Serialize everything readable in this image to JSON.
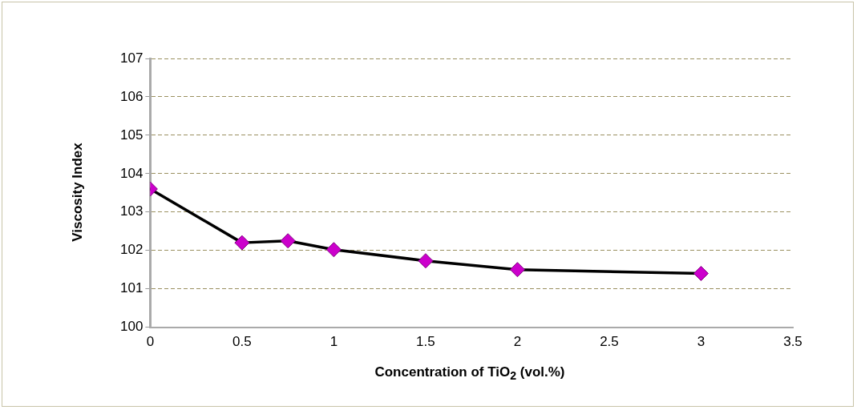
{
  "chart_data": {
    "type": "line",
    "xlabel": "Concentration of TiO$_{2}$ (vol.%)",
    "ylabel": "Viscosity Index",
    "x": [
      0,
      0.5,
      0.75,
      1,
      1.5,
      2,
      3
    ],
    "series": [
      {
        "color": "#cc00cc",
        "values": [
          103.6,
          102.2,
          102.25,
          102.02,
          101.73,
          101.5,
          101.4
        ]
      }
    ],
    "xlim": [
      0,
      3.5
    ],
    "xticks": [
      0,
      0.5,
      1,
      1.5,
      2,
      2.5,
      3,
      3.5
    ],
    "ylim": [
      100,
      107
    ],
    "yticks": [
      100,
      101,
      102,
      103,
      104,
      105,
      106,
      107
    ],
    "grid": "y",
    "legend": false,
    "marker": "diamond",
    "line_style": "solid"
  }
}
